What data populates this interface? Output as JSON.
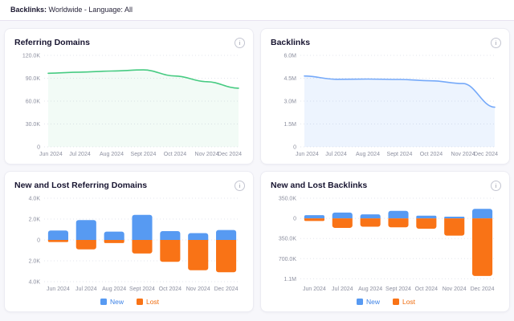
{
  "header": {
    "label": "Backlinks:",
    "filters": "Worldwide - Language: All"
  },
  "colors": {
    "page_background": "#f7f7fb",
    "card_background": "#ffffff",
    "grid_line": "#e3e5ec",
    "axis_text": "#8c8f9f",
    "green_line": "#47cb82",
    "blue_line": "#75a9f9",
    "bar_blue": "#579af2",
    "bar_orange": "#f97316"
  },
  "info_icon_glyph": "i",
  "chart_data": [
    {
      "id": "referring-domains",
      "type": "line",
      "title": "Referring Domains",
      "line_color": "#47cb82",
      "fill_color": "rgba(71,203,130,0.07)",
      "x": [
        "Jun 2024",
        "Jul 2024",
        "Aug 2024",
        "Sept 2024",
        "Oct 2024",
        "Nov 2024",
        "Dec 2024"
      ],
      "values": [
        96500,
        98000,
        99500,
        101000,
        93000,
        85500,
        77000
      ],
      "y_ticks": [
        {
          "label": "120.0K",
          "value": 120000
        },
        {
          "label": "90.0K",
          "value": 90000
        },
        {
          "label": "60.0K",
          "value": 60000
        },
        {
          "label": "30.0K",
          "value": 30000
        },
        {
          "label": "0",
          "value": 0
        }
      ],
      "y_max": 120000,
      "y_min": 0,
      "grid": "dotted-horizontal",
      "legend_position": "none"
    },
    {
      "id": "backlinks",
      "type": "line",
      "title": "Backlinks",
      "line_color": "#75a9f9",
      "fill_color": "rgba(117,169,249,0.13)",
      "x": [
        "Jun 2024",
        "Jul 2024",
        "Aug 2024",
        "Sept 2024",
        "Oct 2024",
        "Nov 2024",
        "Dec 2024"
      ],
      "values": [
        4650000,
        4430000,
        4450000,
        4420000,
        4330000,
        4150000,
        2600000
      ],
      "y_ticks": [
        {
          "label": "6.0M",
          "value": 6000000
        },
        {
          "label": "4.5M",
          "value": 4500000
        },
        {
          "label": "3.0M",
          "value": 3000000
        },
        {
          "label": "1.5M",
          "value": 1500000
        },
        {
          "label": "0",
          "value": 0
        }
      ],
      "y_max": 6000000,
      "y_min": 0,
      "grid": "dotted-horizontal",
      "legend_position": "none"
    },
    {
      "id": "new-lost-referring-domains",
      "type": "stacked_bar",
      "title": "New and Lost Referring Domains",
      "x": [
        "Jun 2024",
        "Jul 2024",
        "Aug 2024",
        "Sept 2024",
        "Oct 2024",
        "Nov 2024",
        "Dec 2024"
      ],
      "series": [
        {
          "name": "New",
          "color": "#579af2",
          "text_color": "#3c82e6",
          "direction": "up",
          "values": [
            900,
            1900,
            800,
            2400,
            850,
            650,
            950
          ]
        },
        {
          "name": "Lost",
          "color": "#f97316",
          "text_color": "#ef6c0e",
          "direction": "down",
          "values": [
            200,
            900,
            300,
            1300,
            2100,
            2900,
            3100
          ]
        }
      ],
      "y_ticks": [
        {
          "label": "4.0K",
          "value": 4000
        },
        {
          "label": "2.0K",
          "value": 2000
        },
        {
          "label": "0",
          "value": 0
        },
        {
          "label": "2.0K",
          "value": -2000
        },
        {
          "label": "4.0K",
          "value": -4000
        }
      ],
      "y_max": 4000,
      "y_min": -4000,
      "grid": "dotted-horizontal",
      "legend_position": "bottom-center"
    },
    {
      "id": "new-lost-backlinks",
      "type": "stacked_bar",
      "title": "New and Lost Backlinks",
      "x": [
        "Jun 2024",
        "Jul 2024",
        "Aug 2024",
        "Sept 2024",
        "Oct 2024",
        "Nov 2024",
        "Dec 2024"
      ],
      "series": [
        {
          "name": "New",
          "color": "#579af2",
          "text_color": "#3c82e6",
          "direction": "up",
          "values": [
            55000,
            100000,
            70000,
            130000,
            47000,
            30000,
            165000
          ]
        },
        {
          "name": "Lost",
          "color": "#f97316",
          "text_color": "#ef6c0e",
          "direction": "down",
          "values": [
            45000,
            165000,
            145000,
            155000,
            180000,
            300000,
            1000000
          ]
        }
      ],
      "y_ticks": [
        {
          "label": "350.0K",
          "value": 350000
        },
        {
          "label": "0",
          "value": 0
        },
        {
          "label": "350.0K",
          "value": -350000
        },
        {
          "label": "700.0K",
          "value": -700000
        },
        {
          "label": "1.1M",
          "value": -1050000
        }
      ],
      "y_max": 350000,
      "y_min": -1100000,
      "grid": "dotted-horizontal",
      "legend_position": "bottom-center"
    }
  ]
}
